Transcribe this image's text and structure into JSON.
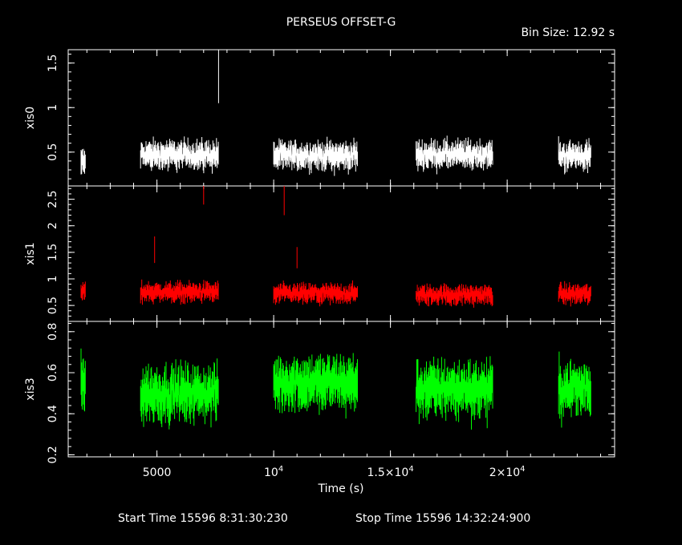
{
  "title": "PERSEUS OFFSET-G",
  "bin_size": "Bin Size: 12.92 s",
  "footer": {
    "start": "Start Time 15596  8:31:30:230",
    "stop": "Stop Time 15596 14:32:24:900"
  },
  "colors": {
    "background": "#000000",
    "axes": "#ffffff",
    "xis0": "#ffffff",
    "xis1": "#ff0000",
    "xis3": "#00ff00"
  },
  "chart_data": {
    "type": "line",
    "style": "binned light curve with vertical error bars",
    "title": "PERSEUS OFFSET-G",
    "xlabel": "Time (s)",
    "xlim": [
      1200,
      24600
    ],
    "x_ticks": [
      {
        "value": 5000,
        "label": "5000"
      },
      {
        "value": 10000,
        "label": "10",
        "sup": "4"
      },
      {
        "value": 15000,
        "label": "1.5×10",
        "sup": "4"
      },
      {
        "value": 20000,
        "label": "2×10",
        "sup": "4"
      }
    ],
    "gti_segments": [
      [
        1750,
        1950
      ],
      [
        4300,
        7650
      ],
      [
        10000,
        13600
      ],
      [
        16100,
        19400
      ],
      [
        22200,
        23600
      ]
    ],
    "panels": [
      {
        "name": "xis0",
        "ylabel": "xis0",
        "color": "#ffffff",
        "ylim": [
          0.12,
          1.65
        ],
        "y_ticks": [
          {
            "value": 0.5,
            "label": "0.5"
          },
          {
            "value": 1,
            "label": "1"
          },
          {
            "value": 1.5,
            "label": "1.5"
          }
        ],
        "segment_means": [
          0.38,
          0.47,
          0.46,
          0.47,
          0.46
        ],
        "spread": 0.12,
        "spikes": [
          {
            "x": 7640,
            "y": 1.35,
            "err": 0.3
          }
        ]
      },
      {
        "name": "xis1",
        "ylabel": "xis1",
        "color": "#ff0000",
        "ylim": [
          0.2,
          2.75
        ],
        "y_ticks": [
          {
            "value": 0.5,
            "label": "0.5"
          },
          {
            "value": 1,
            "label": "1"
          },
          {
            "value": 1.5,
            "label": "1.5"
          },
          {
            "value": 2,
            "label": "2"
          },
          {
            "value": 2.5,
            "label": "2.5"
          }
        ],
        "segment_means": [
          0.75,
          0.75,
          0.72,
          0.7,
          0.72
        ],
        "spread": 0.14,
        "spikes": [
          {
            "x": 7000,
            "y": 2.6,
            "err": 0.2
          },
          {
            "x": 10450,
            "y": 2.5,
            "err": 0.3
          },
          {
            "x": 4900,
            "y": 1.55,
            "err": 0.25
          },
          {
            "x": 11000,
            "y": 1.4,
            "err": 0.2
          }
        ]
      },
      {
        "name": "xis3",
        "ylabel": "xis3",
        "color": "#00ff00",
        "ylim": [
          0.19,
          0.85
        ],
        "y_ticks": [
          {
            "value": 0.2,
            "label": "0.2"
          },
          {
            "value": 0.4,
            "label": "0.4"
          },
          {
            "value": 0.6,
            "label": "0.6"
          },
          {
            "value": 0.8,
            "label": "0.8"
          }
        ],
        "segment_means": [
          0.55,
          0.5,
          0.55,
          0.52,
          0.52
        ],
        "spread": 0.1,
        "spikes": []
      }
    ]
  }
}
